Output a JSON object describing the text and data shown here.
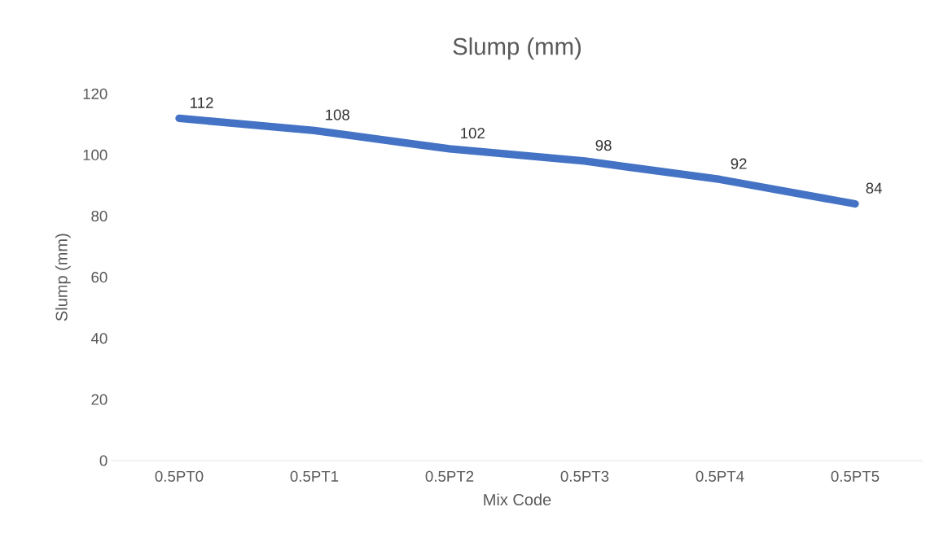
{
  "chart_data": {
    "type": "line",
    "title": "Slump (mm)",
    "xlabel": "Mix Code",
    "ylabel": "Slump (mm)",
    "categories": [
      "0.5PT0",
      "0.5PT1",
      "0.5PT2",
      "0.5PT3",
      "0.5PT4",
      "0.5PT5"
    ],
    "values": [
      112,
      108,
      102,
      98,
      92,
      84
    ],
    "color": "#4472c4",
    "ylim": [
      0,
      120
    ],
    "yticks": [
      0,
      20,
      40,
      60,
      80,
      100,
      120
    ],
    "data_labels": true,
    "marker": "none",
    "line_style": "solid"
  }
}
